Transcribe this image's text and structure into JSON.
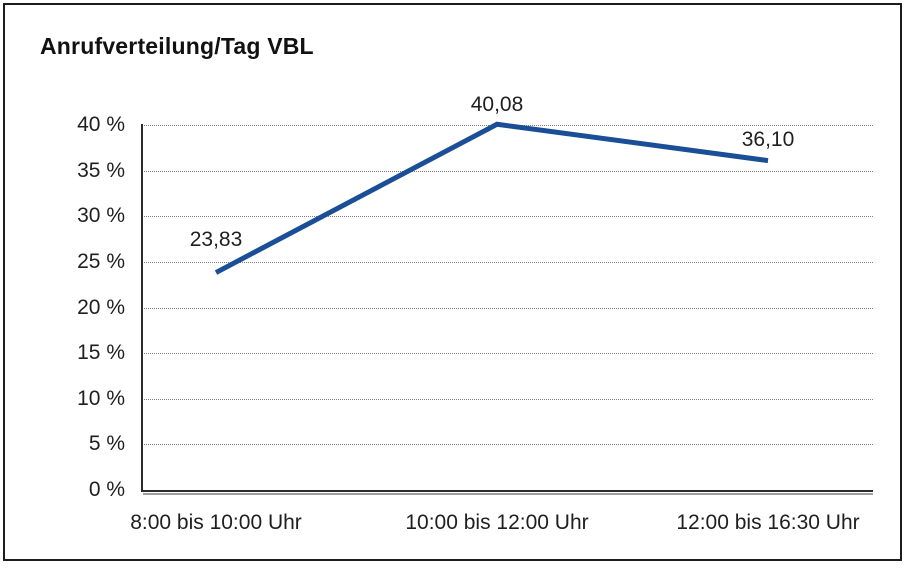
{
  "title": "Anrufverteilung/Tag VBL",
  "chart_data": {
    "type": "line",
    "title": "Anrufverteilung/Tag VBL",
    "categories": [
      "8:00 bis 10:00 Uhr",
      "10:00 bis 12:00 Uhr",
      "12:00 bis 16:30 Uhr"
    ],
    "values": [
      23.83,
      40.08,
      36.1
    ],
    "data_labels": [
      "23,83",
      "40,08",
      "36,10"
    ],
    "xlabel": "",
    "ylabel": "",
    "ylim": [
      0,
      40
    ],
    "ytick_step": 5,
    "ytick_labels": [
      "0 %",
      "5 %",
      "10 %",
      "15 %",
      "20 %",
      "25 %",
      "30 %",
      "35 %",
      "40 %"
    ],
    "grid": "horizontal-dotted",
    "legend": "none",
    "colors": {
      "line": "#1a4e96",
      "axis": "#2b2b2b",
      "axis_shadow": "#9e9e9e",
      "gridline": "#7d7d7d",
      "text": "#1f1f1f",
      "frame_border": "#1c1c1c"
    }
  }
}
